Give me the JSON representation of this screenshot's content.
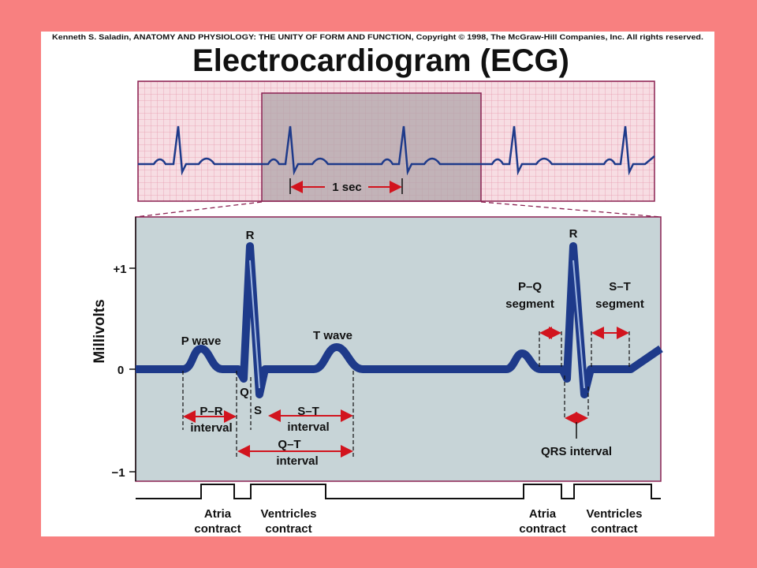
{
  "credit": "Kenneth S. Saladin, ANATOMY AND PHYSIOLOGY: THE UNITY OF FORM AND FUNCTION, Copyright © 1998, The McGraw-Hill Companies, Inc.  All rights reserved.",
  "title": "Electrocardiogram (ECG)",
  "strip": {
    "scale_label": "1 sec"
  },
  "axis": {
    "label": "Millivolts",
    "ticks": [
      "+1",
      "0",
      "−1"
    ]
  },
  "annotations": {
    "r_peaks": [
      "R",
      "R"
    ],
    "p_wave": "P wave",
    "t_wave": "T wave",
    "q": "Q",
    "s": "S",
    "pr_interval": [
      "P–R",
      "interval"
    ],
    "st_interval": [
      "S–T",
      "interval"
    ],
    "qt_interval": [
      "Q–T",
      "interval"
    ],
    "pq_segment": [
      "P–Q",
      "segment"
    ],
    "st_segment": [
      "S–T",
      "segment"
    ],
    "qrs_interval": "QRS interval"
  },
  "events": [
    [
      "Atria",
      "contract"
    ],
    [
      "Ventricles",
      "contract"
    ],
    [
      "Atria",
      "contract"
    ],
    [
      "Ventricles",
      "contract"
    ]
  ]
}
